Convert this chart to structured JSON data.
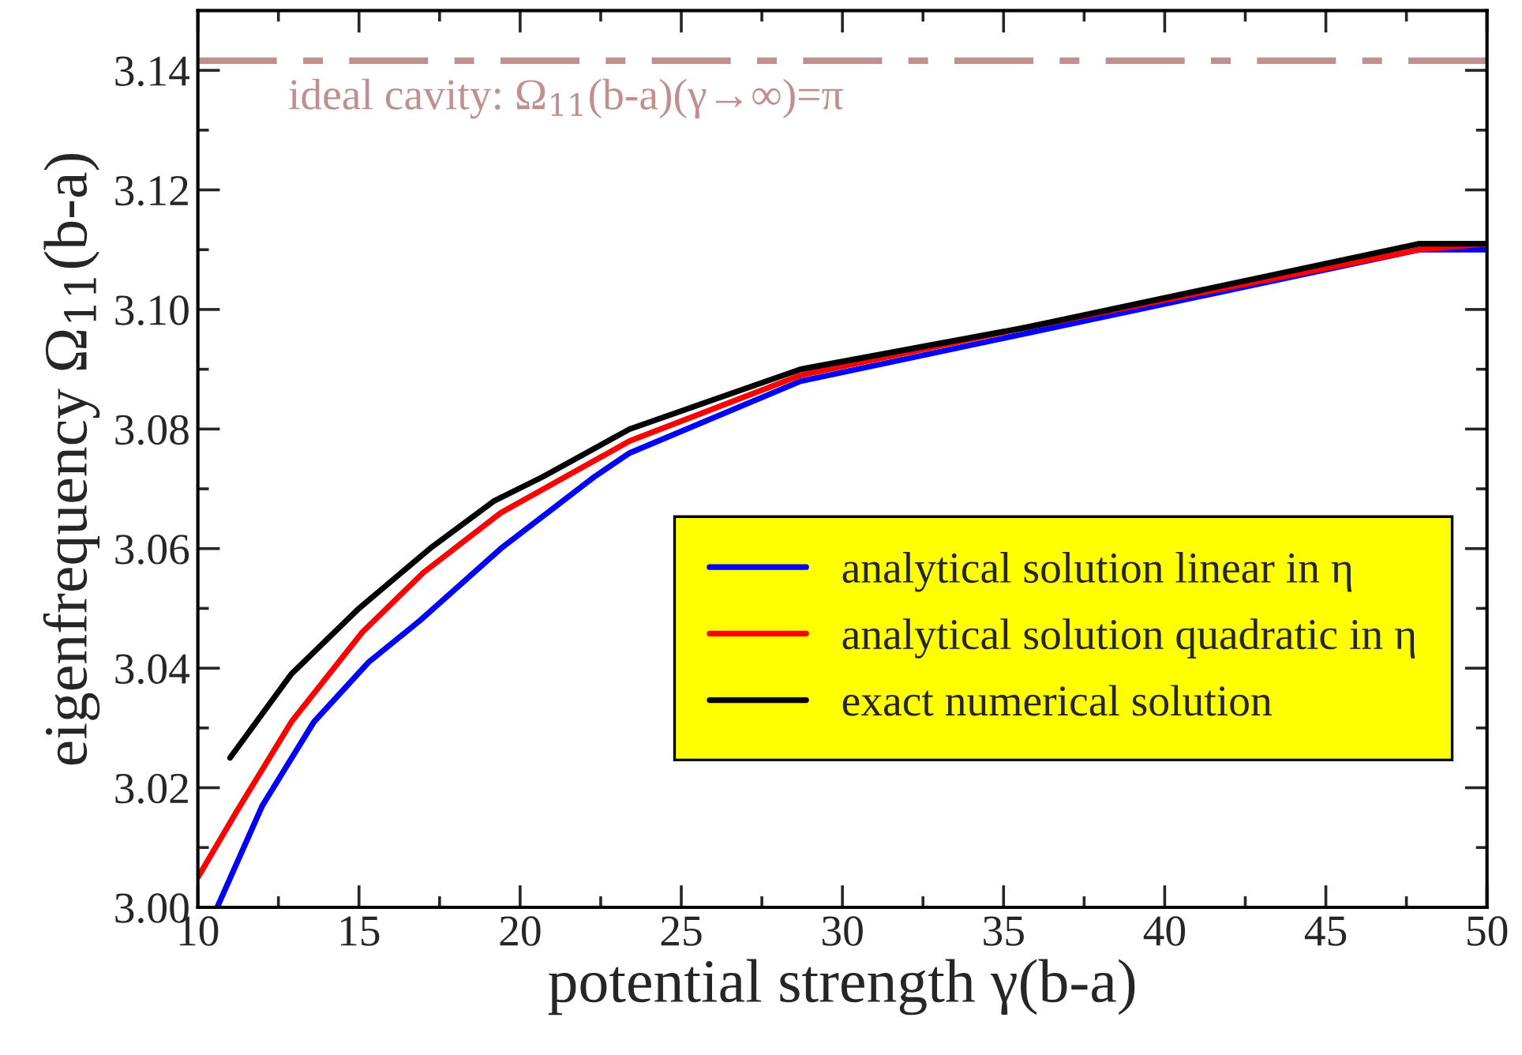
{
  "chart_data": {
    "type": "line",
    "xlabel": "potential strength γ(b-a)",
    "ylabel": "eigenfrequency Ω$_{11}$(b-a)",
    "xlim": [
      10,
      50
    ],
    "ylim": [
      3.0,
      3.15
    ],
    "xticks": [
      10,
      {
        "value": 12.5,
        "label": null
      },
      15,
      {
        "value": 17.5,
        "label": null
      },
      20,
      {
        "value": 22.5,
        "label": null
      },
      25,
      {
        "value": 27.5,
        "label": null
      },
      30,
      {
        "value": 32.5,
        "label": null
      },
      35,
      {
        "value": 37.5,
        "label": null
      },
      40,
      {
        "value": 42.5,
        "label": null
      },
      45,
      {
        "value": 47.5,
        "label": null
      },
      50
    ],
    "yticks": [
      {
        "value": 3.0,
        "label": "3.00"
      },
      {
        "value": 3.01,
        "label": null
      },
      3.02,
      {
        "value": 3.03,
        "label": null
      },
      3.04,
      {
        "value": 3.05,
        "label": null
      },
      3.06,
      {
        "value": 3.07,
        "label": null
      },
      3.08,
      {
        "value": 3.09,
        "label": null
      },
      {
        "value": 3.1,
        "label": "3.10"
      },
      {
        "value": 3.11,
        "label": null
      },
      3.12,
      {
        "value": 3.13,
        "label": null
      },
      3.14
    ],
    "grid": false,
    "legend": "right",
    "marker": "none",
    "line_style": "solid",
    "ref_lines": [
      {
        "axis": "y",
        "value": 3.1416,
        "label": "ideal cavity: Ω$_{11}$(b-a)(γ→∞)=π",
        "color": "#c09090",
        "line_style": "dashdot"
      }
    ],
    "series": [
      {
        "name": "analytical solution linear in η",
        "color": "#0000ff",
        "x": [
          10.6,
          12.0,
          13.6,
          15.3,
          16.9,
          19.4,
          22.3,
          23.4,
          28.7,
          35.7,
          47.9,
          50
        ],
        "values": [
          3.0,
          3.017,
          3.031,
          3.041,
          3.048,
          3.06,
          3.072,
          3.076,
          3.088,
          3.096,
          3.11,
          3.11
        ]
      },
      {
        "name": "analytical solution quadratic in η",
        "color": "#ff0000",
        "x": [
          10.0,
          11.2,
          12.9,
          15.1,
          17.0,
          19.4,
          21.4,
          23.4,
          28.7,
          35.7,
          47.9,
          50
        ],
        "values": [
          3.005,
          3.016,
          3.031,
          3.046,
          3.056,
          3.066,
          3.072,
          3.078,
          3.089,
          3.097,
          3.11,
          3.111
        ]
      },
      {
        "name": "exact numerical solution",
        "color": "#000000",
        "x": [
          11.0,
          12.9,
          15.0,
          17.2,
          19.2,
          20.7,
          23.4,
          28.7,
          35.7,
          47.9,
          50
        ],
        "values": [
          3.025,
          3.039,
          3.05,
          3.06,
          3.068,
          3.072,
          3.08,
          3.09,
          3.097,
          3.111,
          3.111
        ]
      }
    ]
  }
}
